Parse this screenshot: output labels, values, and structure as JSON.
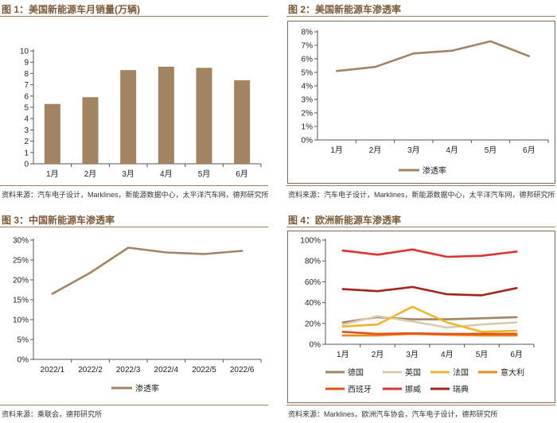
{
  "panels": [
    {
      "label": "图 1：",
      "title": "美国新能源车月销量(万辆)",
      "source": "资料来源：汽车电子设计，Marklines，新能源数据中心，太平洋汽车网，德邦研究所"
    },
    {
      "label": "图 2：",
      "title": "美国新能源车渗透率",
      "source": "资料来源：汽车电子设计，Marklines，新能源数据中心，太平洋汽车网，德邦研究所"
    },
    {
      "label": "图 3：",
      "title": "中国新能源车渗透率",
      "source": "资料来源：乘联会，德邦研究所"
    },
    {
      "label": "图 4：",
      "title": "欧洲新能源车渗透率",
      "source": "资料来源：Marklines，欧洲汽车协会，汽车电子设计，德邦研究所"
    }
  ],
  "chart_data": [
    {
      "type": "bar",
      "title": "美国新能源车月销量(万辆)",
      "categories": [
        "1月",
        "2月",
        "3月",
        "4月",
        "5月",
        "6月"
      ],
      "values": [
        5.3,
        5.9,
        8.3,
        8.6,
        8.5,
        7.4
      ],
      "ylim": [
        0,
        10
      ],
      "yticks": [
        "0",
        "1",
        "2",
        "3",
        "4",
        "5",
        "6",
        "7",
        "8",
        "9",
        "10"
      ],
      "color": "#a38462"
    },
    {
      "type": "line",
      "title": "美国新能源车渗透率",
      "categories": [
        "1月",
        "2月",
        "3月",
        "4月",
        "5月",
        "6月"
      ],
      "series": [
        {
          "name": "渗透率",
          "values": [
            5.1,
            5.4,
            6.4,
            6.6,
            7.3,
            6.2
          ],
          "color": "#a38462"
        }
      ],
      "ylim": [
        0,
        8
      ],
      "yticks": [
        "0%",
        "1%",
        "2%",
        "3%",
        "4%",
        "5%",
        "6%",
        "7%",
        "8%"
      ],
      "legend": "bottom"
    },
    {
      "type": "line",
      "title": "中国新能源车渗透率",
      "categories": [
        "2022/1",
        "2022/2",
        "2022/3",
        "2022/4",
        "2022/5",
        "2022/6"
      ],
      "series": [
        {
          "name": "渗透率",
          "values": [
            16.5,
            21.8,
            28.1,
            26.9,
            26.5,
            27.3
          ],
          "color": "#a38462"
        }
      ],
      "ylim": [
        0,
        30
      ],
      "yticks": [
        "0%",
        "5%",
        "10%",
        "15%",
        "20%",
        "25%",
        "30%"
      ],
      "legend": "bottom"
    },
    {
      "type": "line",
      "title": "欧洲新能源车渗透率",
      "categories": [
        "1月",
        "2月",
        "3月",
        "4月",
        "5月",
        "6月"
      ],
      "series": [
        {
          "name": "德国",
          "values": [
            21,
            26,
            24,
            24,
            25,
            26
          ],
          "color": "#a38462"
        },
        {
          "name": "英国",
          "values": [
            19,
            27,
            22,
            16,
            19,
            21
          ],
          "color": "#d9c9ad"
        },
        {
          "name": "法国",
          "values": [
            17,
            19,
            36,
            21,
            12,
            13
          ],
          "color": "#f2b42a"
        },
        {
          "name": "意大利",
          "values": [
            8.5,
            8.5,
            10,
            9,
            8.5,
            8.5
          ],
          "color": "#ed8a1e"
        },
        {
          "name": "西班牙",
          "values": [
            12,
            10,
            10.5,
            10,
            10,
            10
          ],
          "color": "#e0531c"
        },
        {
          "name": "挪威",
          "values": [
            90,
            86,
            91,
            84,
            85,
            89
          ],
          "color": "#e03030"
        },
        {
          "name": "瑞典",
          "values": [
            53,
            51,
            55,
            48,
            47,
            54
          ],
          "color": "#a52318"
        }
      ],
      "ylim": [
        0,
        100
      ],
      "yticks": [
        "0%",
        "20%",
        "40%",
        "60%",
        "80%",
        "100%"
      ],
      "legend": "bottom"
    }
  ]
}
